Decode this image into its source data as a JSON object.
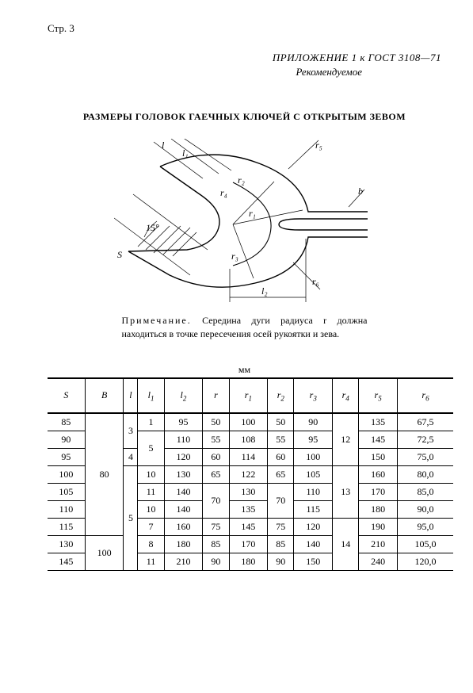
{
  "page_number": "Стр. 3",
  "appendix_line": "ПРИЛОЖЕНИЕ 1 к ГОСТ 3108—71",
  "appendix_rec": "Рекомендуемое",
  "title": "РАЗМЕРЫ ГОЛОВОК ГАЕЧНЫХ КЛЮЧЕЙ С ОТКРЫТЫМ ЗЕВОМ",
  "note_lead": "Примечание.",
  "note_body": " Середина дуги радиуса r должна находиться в точке пересечения осей рукоятки и зева.",
  "units": "мм",
  "diagram_labels": {
    "l": "l",
    "l1": "l₁",
    "l2": "l₂",
    "S": "S",
    "angle": "15°",
    "r1": "r₁",
    "r2": "r₂",
    "r3": "r₃",
    "r4": "r₄",
    "r5": "r₅",
    "r6": "r₆",
    "b": "b"
  },
  "table": {
    "columns": [
      "S",
      "B",
      "l",
      "l₁",
      "l₂",
      "r",
      "r₁",
      "r₂",
      "r₃",
      "r₄",
      "r₅",
      "r₆"
    ],
    "rows": [
      {
        "S": "85",
        "B": "80",
        "l": "3",
        "l1": "1",
        "l2": "95",
        "r": "50",
        "r1": "100",
        "r2": "50",
        "r3": "90",
        "r4": "12",
        "r5": "135",
        "r6": "67,5"
      },
      {
        "S": "90",
        "B": "80",
        "l": "3",
        "l1": "5",
        "l2": "110",
        "r": "55",
        "r1": "108",
        "r2": "55",
        "r3": "95",
        "r4": "12",
        "r5": "145",
        "r6": "72,5"
      },
      {
        "S": "95",
        "B": "80",
        "l": "4",
        "l1": "5",
        "l2": "120",
        "r": "60",
        "r1": "114",
        "r2": "60",
        "r3": "100",
        "r4": "12",
        "r5": "150",
        "r6": "75,0"
      },
      {
        "S": "100",
        "B": "80",
        "l": "5",
        "l1": "10",
        "l2": "130",
        "r": "65",
        "r1": "122",
        "r2": "65",
        "r3": "105",
        "r4": "13",
        "r5": "160",
        "r6": "80,0"
      },
      {
        "S": "105",
        "B": "80",
        "l": "5",
        "l1": "11",
        "l2": "140",
        "r": "70",
        "r1": "130",
        "r2": "70",
        "r3": "110",
        "r4": "13",
        "r5": "170",
        "r6": "85,0"
      },
      {
        "S": "110",
        "B": "80",
        "l": "5",
        "l1": "10",
        "l2": "140",
        "r": "70",
        "r1": "135",
        "r2": "70",
        "r3": "115",
        "r4": "13",
        "r5": "180",
        "r6": "90,0"
      },
      {
        "S": "115",
        "B": "80",
        "l": "5",
        "l1": "7",
        "l2": "160",
        "r": "75",
        "r1": "145",
        "r2": "75",
        "r3": "120",
        "r4": "14",
        "r5": "190",
        "r6": "95,0"
      },
      {
        "S": "130",
        "B": "100",
        "l": "5",
        "l1": "8",
        "l2": "180",
        "r": "85",
        "r1": "170",
        "r2": "85",
        "r3": "140",
        "r4": "14",
        "r5": "210",
        "r6": "105,0"
      },
      {
        "S": "145",
        "B": "100",
        "l": "5",
        "l1": "11",
        "l2": "210",
        "r": "90",
        "r1": "180",
        "r2": "90",
        "r3": "150",
        "r4": "14",
        "r5": "240",
        "r6": "120,0"
      }
    ]
  }
}
